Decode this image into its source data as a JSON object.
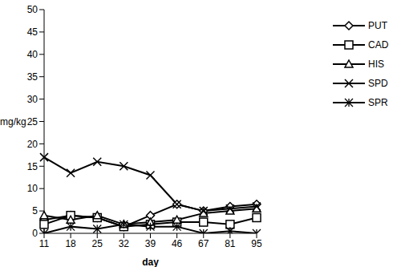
{
  "chart_data": {
    "type": "line",
    "x_label": "day",
    "y_label": "mg/kg",
    "categories": [
      "11",
      "18",
      "25",
      "32",
      "39",
      "46",
      "67",
      "81",
      "95"
    ],
    "ylim": [
      0,
      50
    ],
    "yticks": [
      0,
      5,
      10,
      15,
      20,
      25,
      30,
      35,
      40,
      45,
      50
    ],
    "grid": false,
    "legend": "right",
    "series": [
      {
        "name": "PUT",
        "color": "#000000",
        "marker": "diamond",
        "values": [
          3,
          4,
          3.5,
          1.5,
          4,
          6.5,
          5,
          6,
          6.5
        ]
      },
      {
        "name": "CAD",
        "color": "#000000",
        "marker": "square",
        "values": [
          2,
          4,
          3.5,
          1.5,
          2,
          2.5,
          2.5,
          2,
          3.5
        ]
      },
      {
        "name": "HIS",
        "color": "#000000",
        "marker": "triangle",
        "values": [
          4,
          3,
          4,
          2,
          2.5,
          3,
          4.5,
          5,
          5.5
        ]
      },
      {
        "name": "SPD",
        "color": "#000000",
        "marker": "x",
        "values": [
          17,
          13.5,
          16,
          15,
          13,
          6.5,
          5,
          5.5,
          6
        ]
      },
      {
        "name": "SPR",
        "color": "#000000",
        "marker": "star",
        "values": [
          0,
          1.5,
          1,
          2,
          1.5,
          1.5,
          0,
          0.5,
          0
        ]
      }
    ]
  }
}
